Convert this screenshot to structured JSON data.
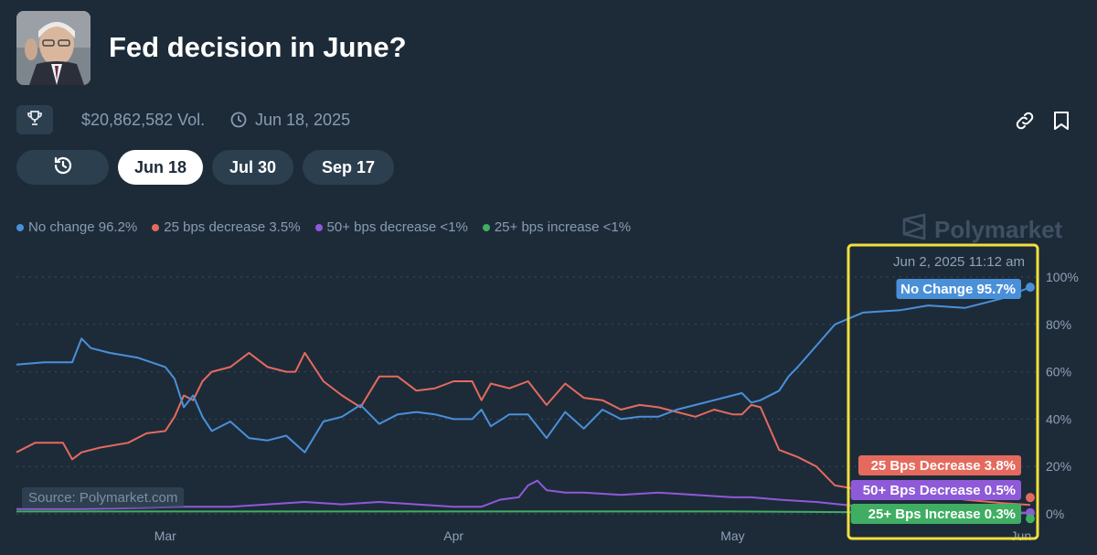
{
  "header": {
    "title": "Fed decision in June?",
    "volume": "$20,862,582 Vol.",
    "end_date": "Jun 18, 2025"
  },
  "tabs": [
    {
      "label": "Jun 18",
      "active": true
    },
    {
      "label": "Jul 30",
      "active": false
    },
    {
      "label": "Sep 17",
      "active": false
    }
  ],
  "legend": [
    {
      "label": "No change 96.2%",
      "color": "#4a90d9"
    },
    {
      "label": "25 bps decrease 3.5%",
      "color": "#e56a5e"
    },
    {
      "label": "50+ bps decrease <1%",
      "color": "#8e5ad8"
    },
    {
      "label": "25+ bps increase <1%",
      "color": "#3fae63"
    }
  ],
  "brand": "Polymarket",
  "source": "Source: Polymarket.com",
  "icons": [
    "trophy-icon",
    "clock-icon",
    "history-icon",
    "link-icon",
    "bookmark-icon",
    "polymarket-logo-icon"
  ],
  "colors": {
    "background": "#1d2b39",
    "button_bg": "#2c3f4f",
    "muted_text": "#899cb2",
    "highlight_box": "#f3df3c"
  },
  "chart_data": {
    "type": "line",
    "title": "",
    "xlabel": "",
    "ylabel": "",
    "x_ticks": [
      "Mar",
      "Apr",
      "May",
      "Jun"
    ],
    "y_ticks": [
      "100%",
      "80%",
      "60%",
      "40%",
      "20%",
      "0%"
    ],
    "ylim": [
      0,
      100
    ],
    "grid": true,
    "legend_position": "top-left",
    "hover_date": "Jun 2, 2025 11:12 am",
    "tooltips": [
      {
        "text": "No Change 95.7%",
        "color": "#4a90d9"
      },
      {
        "text": "25 Bps Decrease 3.8%",
        "color": "#e56a5e"
      },
      {
        "text": "50+ Bps Decrease 0.5%",
        "color": "#8e5ad8"
      },
      {
        "text": "25+ Bps Increase 0.3%",
        "color": "#3fae63"
      }
    ],
    "x_domain": [
      "2025-02-13",
      "2025-06-02"
    ],
    "series": [
      {
        "name": "No Change",
        "color": "#4a90d9",
        "x": [
          "2025-02-13",
          "2025-02-16",
          "2025-02-19",
          "2025-02-20",
          "2025-02-21",
          "2025-02-23",
          "2025-02-26",
          "2025-03-01",
          "2025-03-02",
          "2025-03-03",
          "2025-03-04",
          "2025-03-05",
          "2025-03-06",
          "2025-03-08",
          "2025-03-10",
          "2025-03-12",
          "2025-03-14",
          "2025-03-16",
          "2025-03-18",
          "2025-03-20",
          "2025-03-22",
          "2025-03-24",
          "2025-03-26",
          "2025-03-28",
          "2025-03-30",
          "2025-04-01",
          "2025-04-03",
          "2025-04-04",
          "2025-04-05",
          "2025-04-07",
          "2025-04-09",
          "2025-04-11",
          "2025-04-13",
          "2025-04-15",
          "2025-04-17",
          "2025-04-19",
          "2025-04-21",
          "2025-04-23",
          "2025-04-25",
          "2025-04-27",
          "2025-04-29",
          "2025-05-01",
          "2025-05-02",
          "2025-05-03",
          "2025-05-04",
          "2025-05-06",
          "2025-05-07",
          "2025-05-08",
          "2025-05-10",
          "2025-05-12",
          "2025-05-15",
          "2025-05-19",
          "2025-05-22",
          "2025-05-26",
          "2025-05-30",
          "2025-06-02"
        ],
        "values": [
          63,
          64,
          64,
          74,
          70,
          68,
          66,
          62,
          57,
          45,
          50,
          41,
          35,
          39,
          32,
          31,
          33,
          26,
          39,
          41,
          46,
          38,
          42,
          43,
          42,
          40,
          40,
          44,
          37,
          42,
          42,
          32,
          43,
          36,
          44,
          40,
          41,
          41,
          44,
          46,
          48,
          50,
          51,
          47,
          48,
          52,
          58,
          62,
          71,
          80,
          85,
          86,
          88,
          87,
          91,
          95.7
        ]
      },
      {
        "name": "25 Bps Decrease",
        "color": "#e56a5e",
        "x": [
          "2025-02-13",
          "2025-02-15",
          "2025-02-18",
          "2025-02-19",
          "2025-02-20",
          "2025-02-22",
          "2025-02-25",
          "2025-02-27",
          "2025-03-01",
          "2025-03-02",
          "2025-03-03",
          "2025-03-04",
          "2025-03-05",
          "2025-03-06",
          "2025-03-08",
          "2025-03-10",
          "2025-03-12",
          "2025-03-14",
          "2025-03-15",
          "2025-03-16",
          "2025-03-18",
          "2025-03-20",
          "2025-03-22",
          "2025-03-24",
          "2025-03-26",
          "2025-03-28",
          "2025-03-30",
          "2025-04-01",
          "2025-04-03",
          "2025-04-04",
          "2025-04-05",
          "2025-04-07",
          "2025-04-09",
          "2025-04-11",
          "2025-04-13",
          "2025-04-15",
          "2025-04-17",
          "2025-04-19",
          "2025-04-21",
          "2025-04-23",
          "2025-04-25",
          "2025-04-27",
          "2025-04-29",
          "2025-05-01",
          "2025-05-02",
          "2025-05-03",
          "2025-05-04",
          "2025-05-06",
          "2025-05-08",
          "2025-05-10",
          "2025-05-12",
          "2025-05-15",
          "2025-05-19",
          "2025-05-22",
          "2025-05-26",
          "2025-05-30",
          "2025-06-02"
        ],
        "values": [
          26,
          30,
          30,
          23,
          26,
          28,
          30,
          34,
          35,
          41,
          50,
          48,
          56,
          60,
          62,
          68,
          62,
          60,
          60,
          68,
          56,
          50,
          45,
          58,
          58,
          52,
          53,
          56,
          56,
          48,
          55,
          53,
          56,
          46,
          55,
          49,
          48,
          44,
          46,
          45,
          43,
          41,
          44,
          42,
          42,
          46,
          45,
          27,
          24,
          20,
          12,
          10,
          9,
          8,
          6,
          4.5,
          3.8
        ]
      },
      {
        "name": "50+ Bps Decrease",
        "color": "#8e5ad8",
        "x": [
          "2025-02-13",
          "2025-02-20",
          "2025-02-27",
          "2025-03-03",
          "2025-03-08",
          "2025-03-12",
          "2025-03-16",
          "2025-03-20",
          "2025-03-24",
          "2025-03-28",
          "2025-04-01",
          "2025-04-04",
          "2025-04-06",
          "2025-04-08",
          "2025-04-09",
          "2025-04-10",
          "2025-04-11",
          "2025-04-13",
          "2025-04-15",
          "2025-04-19",
          "2025-04-23",
          "2025-04-27",
          "2025-05-01",
          "2025-05-03",
          "2025-05-06",
          "2025-05-10",
          "2025-05-15",
          "2025-05-20",
          "2025-05-26",
          "2025-06-02"
        ],
        "values": [
          2,
          2,
          2.5,
          3,
          3,
          4,
          5,
          4,
          5,
          4,
          3,
          3,
          6,
          7,
          12,
          14,
          10,
          9,
          9,
          8,
          9,
          8,
          7,
          7,
          6,
          5,
          3,
          2,
          1,
          0.5
        ]
      },
      {
        "name": "25+ Bps Increase",
        "color": "#3fae63",
        "x": [
          "2025-02-13",
          "2025-03-01",
          "2025-03-15",
          "2025-04-01",
          "2025-04-15",
          "2025-05-01",
          "2025-05-15",
          "2025-06-02"
        ],
        "values": [
          1,
          1,
          1,
          1,
          1,
          1,
          0.7,
          0.3
        ]
      }
    ]
  }
}
